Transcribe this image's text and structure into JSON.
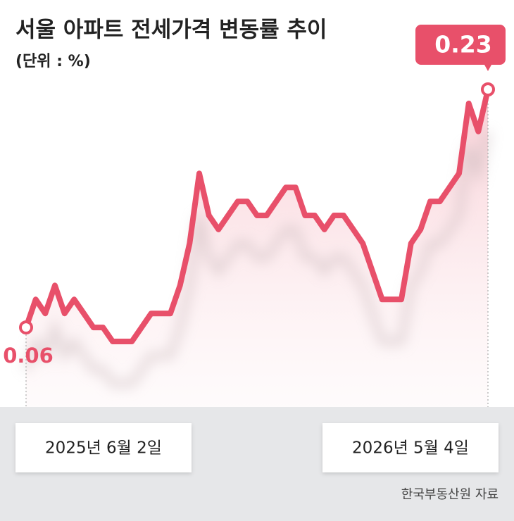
{
  "chart_data": {
    "type": "line",
    "title": "서울 아파트 전세가격 변동률 추이",
    "subtitle": "(단위 : %)",
    "source": "한국부동산원 자료",
    "categories": [
      "2025년 6월 2일",
      null,
      null,
      null,
      null,
      null,
      null,
      null,
      null,
      null,
      null,
      null,
      null,
      null,
      null,
      null,
      null,
      null,
      null,
      null,
      null,
      null,
      null,
      null,
      null,
      null,
      null,
      null,
      null,
      null,
      null,
      null,
      null,
      null,
      null,
      null,
      null,
      null,
      null,
      null,
      null,
      null,
      null,
      null,
      null,
      null,
      null,
      null,
      "2026년 5월 4일"
    ],
    "values": [
      0.06,
      0.08,
      0.07,
      0.09,
      0.07,
      0.08,
      0.07,
      0.06,
      0.06,
      0.05,
      0.05,
      0.05,
      0.06,
      0.07,
      0.07,
      0.07,
      0.09,
      0.12,
      0.17,
      0.14,
      0.13,
      0.14,
      0.15,
      0.15,
      0.14,
      0.14,
      0.15,
      0.16,
      0.16,
      0.14,
      0.14,
      0.13,
      0.14,
      0.14,
      0.13,
      0.12,
      0.1,
      0.08,
      0.08,
      0.08,
      0.12,
      0.13,
      0.15,
      0.15,
      0.16,
      0.17,
      0.22,
      0.2,
      0.23
    ],
    "color": "#e8506a"
  }
}
